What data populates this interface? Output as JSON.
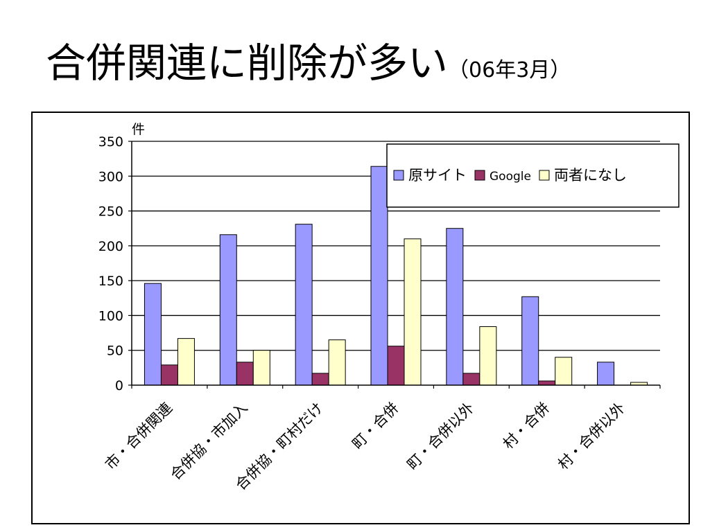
{
  "slide": {
    "title": "合併関連に削除が多い",
    "subtitle": "（06年3月）"
  },
  "chart_data": {
    "type": "bar",
    "ylabel": "件",
    "ylim": [
      0,
      350
    ],
    "yticks": [
      0,
      50,
      100,
      150,
      200,
      250,
      300,
      350
    ],
    "grid": true,
    "legend_position": "top-right",
    "categories": [
      "市・合併関連",
      "合併協・市加入",
      "合併協・町村だけ",
      "町・合併",
      "町・合併以外",
      "村・合併",
      "村・合併以外"
    ],
    "series": [
      {
        "name": "原サイト",
        "color": "#9999ff",
        "values": [
          146,
          216,
          231,
          314,
          225,
          127,
          33
        ]
      },
      {
        "name": "Google",
        "color": "#993366",
        "values": [
          29,
          33,
          17,
          56,
          17,
          6,
          0
        ]
      },
      {
        "name": "両者になし",
        "color": "#ffffcc",
        "values": [
          67,
          50,
          65,
          210,
          84,
          40,
          4
        ]
      }
    ]
  }
}
